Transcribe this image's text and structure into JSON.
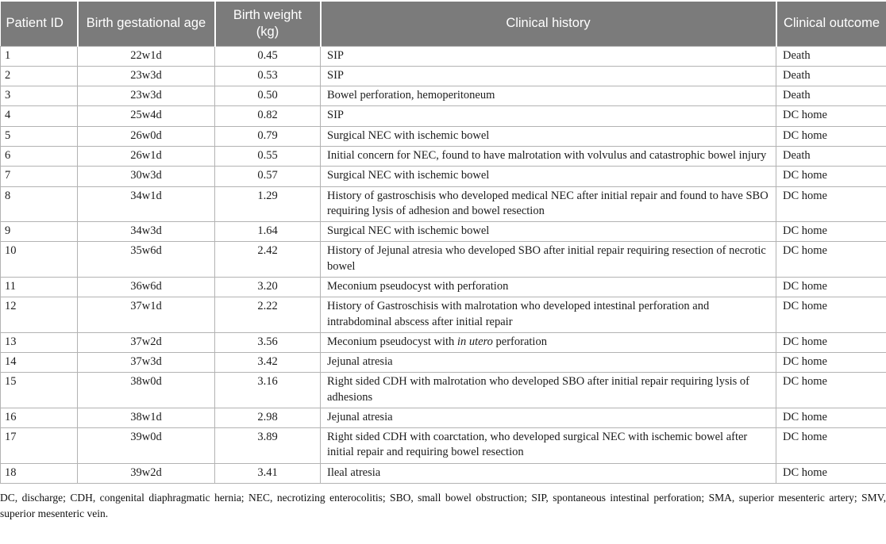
{
  "colors": {
    "header_bg": "#7b7b7b",
    "header_text": "#ffffff",
    "border": "#b3b3b3",
    "body_text": "#1c1c1c"
  },
  "table": {
    "columns": [
      {
        "key": "patient-id",
        "label": "Patient ID"
      },
      {
        "key": "gestational-age",
        "label": "Birth gestational age"
      },
      {
        "key": "birth-weight",
        "label": "Birth weight (kg)"
      },
      {
        "key": "clinical-history",
        "label": "Clinical history"
      },
      {
        "key": "clinical-outcome",
        "label": "Clinical outcome"
      }
    ],
    "rows": [
      {
        "patient_id": "1",
        "gestational_age": "22w1d",
        "birth_weight": "0.45",
        "history": [
          {
            "t": "SIP"
          }
        ],
        "outcome": "Death"
      },
      {
        "patient_id": "2",
        "gestational_age": "23w3d",
        "birth_weight": "0.53",
        "history": [
          {
            "t": "SIP"
          }
        ],
        "outcome": "Death"
      },
      {
        "patient_id": "3",
        "gestational_age": "23w3d",
        "birth_weight": "0.50",
        "history": [
          {
            "t": "Bowel perforation, hemoperitoneum"
          }
        ],
        "outcome": "Death"
      },
      {
        "patient_id": "4",
        "gestational_age": "25w4d",
        "birth_weight": "0.82",
        "history": [
          {
            "t": "SIP"
          }
        ],
        "outcome": "DC home"
      },
      {
        "patient_id": "5",
        "gestational_age": "26w0d",
        "birth_weight": "0.79",
        "history": [
          {
            "t": "Surgical NEC with ischemic bowel"
          }
        ],
        "outcome": "DC home"
      },
      {
        "patient_id": "6",
        "gestational_age": "26w1d",
        "birth_weight": "0.55",
        "history": [
          {
            "t": "Initial concern for NEC, found to have malrotation with volvulus and catastrophic bowel injury"
          }
        ],
        "outcome": "Death"
      },
      {
        "patient_id": "7",
        "gestational_age": "30w3d",
        "birth_weight": "0.57",
        "history": [
          {
            "t": "Surgical NEC with ischemic bowel"
          }
        ],
        "outcome": "DC home"
      },
      {
        "patient_id": "8",
        "gestational_age": "34w1d",
        "birth_weight": "1.29",
        "history": [
          {
            "t": "History of gastroschisis who developed medical NEC after initial repair and found to have SBO requiring lysis of adhesion and bowel resection"
          }
        ],
        "outcome": "DC home"
      },
      {
        "patient_id": "9",
        "gestational_age": "34w3d",
        "birth_weight": "1.64",
        "history": [
          {
            "t": "Surgical NEC with ischemic bowel"
          }
        ],
        "outcome": "DC home"
      },
      {
        "patient_id": "10",
        "gestational_age": "35w6d",
        "birth_weight": "2.42",
        "history": [
          {
            "t": "History of Jejunal atresia who developed SBO after initial repair requiring resection of necrotic bowel"
          }
        ],
        "outcome": "DC home"
      },
      {
        "patient_id": "11",
        "gestational_age": "36w6d",
        "birth_weight": "3.20",
        "history": [
          {
            "t": "Meconium pseudocyst with perforation"
          }
        ],
        "outcome": "DC home"
      },
      {
        "patient_id": "12",
        "gestational_age": "37w1d",
        "birth_weight": "2.22",
        "history": [
          {
            "t": "History of Gastroschisis with malrotation who developed intestinal perforation and intrabdominal abscess after initial repair"
          }
        ],
        "outcome": "DC home"
      },
      {
        "patient_id": "13",
        "gestational_age": "37w2d",
        "birth_weight": "3.56",
        "history": [
          {
            "t": "Meconium pseudocyst with "
          },
          {
            "t": "in utero",
            "italic": true
          },
          {
            "t": " perforation"
          }
        ],
        "outcome": "DC home"
      },
      {
        "patient_id": "14",
        "gestational_age": "37w3d",
        "birth_weight": "3.42",
        "history": [
          {
            "t": "Jejunal atresia"
          }
        ],
        "outcome": "DC home"
      },
      {
        "patient_id": "15",
        "gestational_age": "38w0d",
        "birth_weight": "3.16",
        "history": [
          {
            "t": "Right sided CDH with malrotation who developed SBO after initial repair requiring lysis of adhesions"
          }
        ],
        "outcome": "DC home"
      },
      {
        "patient_id": "16",
        "gestational_age": "38w1d",
        "birth_weight": "2.98",
        "history": [
          {
            "t": "Jejunal atresia"
          }
        ],
        "outcome": "DC home"
      },
      {
        "patient_id": "17",
        "gestational_age": "39w0d",
        "birth_weight": "3.89",
        "history": [
          {
            "t": "Right sided CDH with coarctation, who developed surgical NEC with ischemic bowel after initial repair and requiring bowel resection"
          }
        ],
        "outcome": "DC home"
      },
      {
        "patient_id": "18",
        "gestational_age": "39w2d",
        "birth_weight": "3.41",
        "history": [
          {
            "t": "Ileal atresia"
          }
        ],
        "outcome": "DC home"
      }
    ]
  },
  "footnote": "DC, discharge; CDH, congenital diaphragmatic hernia; NEC, necrotizing enterocolitis; SBO, small bowel obstruction; SIP, spontaneous intestinal perforation; SMA, superior mesenteric artery; SMV, superior mesenteric vein."
}
